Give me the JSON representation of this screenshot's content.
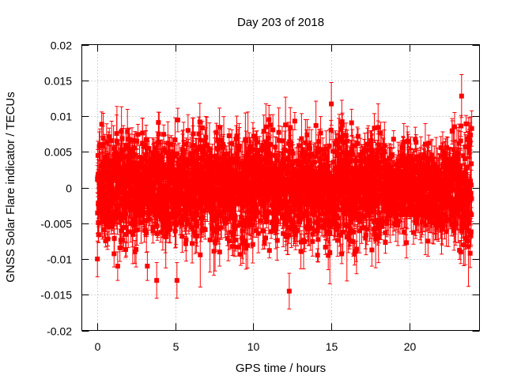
{
  "chart_data": {
    "type": "scatter",
    "title": "Day 203 of 2018",
    "xlabel": "GPS time / hours",
    "ylabel": "GNSS Solar Flare indicator / TECUs",
    "xlim": [
      -1,
      24.5
    ],
    "ylim": [
      -0.02,
      0.02
    ],
    "xticks": [
      0,
      5,
      10,
      15,
      20
    ],
    "xtick_labels": [
      "0",
      "5",
      "10",
      "15",
      "20"
    ],
    "yticks": [
      0.02,
      0.015,
      0.01,
      0.005,
      0,
      -0.005,
      -0.01,
      -0.015,
      -0.02
    ],
    "ytick_labels": [
      "0.02",
      "0.015",
      "0.01",
      "0.005",
      "0",
      "-0.005",
      "-0.01",
      "-0.015",
      "-0.02"
    ],
    "grid": true,
    "marker_color": "#ff0000",
    "series": [
      {
        "name": "solar flare indicator",
        "x_start": 0,
        "x_end": 24,
        "point_count": 2880,
        "noise_std": 0.0035,
        "error_bar_std": 0.0025,
        "notable_points": [
          {
            "x": 23.35,
            "y": 0.0128,
            "err": 0.003
          },
          {
            "x": 15.0,
            "y": 0.0117,
            "err": 0.003
          },
          {
            "x": 12.3,
            "y": -0.0145,
            "err": 0.0025
          },
          {
            "x": 5.1,
            "y": -0.013,
            "err": 0.0025
          },
          {
            "x": 3.8,
            "y": -0.013,
            "err": 0.0025
          },
          {
            "x": 0.0,
            "y": -0.01,
            "err": 0.0025
          },
          {
            "x": 3.2,
            "y": -0.011,
            "err": 0.002
          },
          {
            "x": 1.3,
            "y": -0.011,
            "err": 0.002
          },
          {
            "x": 14.8,
            "y": -0.0095,
            "err": 0.002
          },
          {
            "x": 23.9,
            "y": -0.0092,
            "err": 0.002
          },
          {
            "x": 22.9,
            "y": 0.0085,
            "err": 0.002
          },
          {
            "x": 11.0,
            "y": 0.0095,
            "err": 0.002
          }
        ]
      }
    ]
  }
}
